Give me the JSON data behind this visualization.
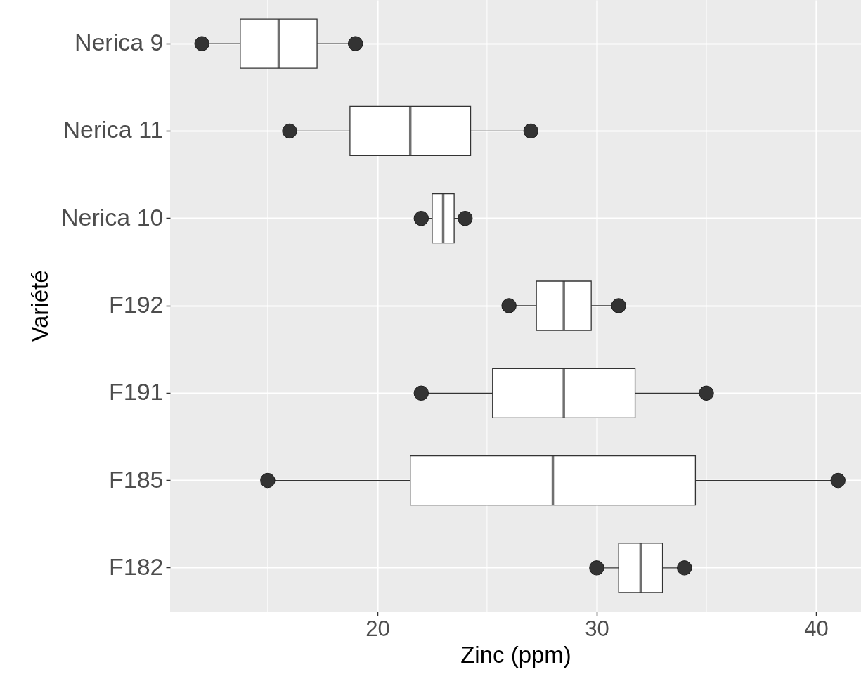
{
  "chart_data": {
    "type": "box",
    "orientation": "horizontal",
    "xlabel": "Zinc (ppm)",
    "ylabel": "Variété",
    "categories": [
      "Nerica 9",
      "Nerica 11",
      "Nerica 10",
      "F192",
      "F191",
      "F185",
      "F182"
    ],
    "xlim": [
      10.55,
      42.05
    ],
    "xticks": [
      20,
      30,
      40
    ],
    "grid": true,
    "series": [
      {
        "type": "box",
        "color": "#ffffff",
        "boxes": [
          {
            "low": 12,
            "q1": 13.75,
            "median": 15.5,
            "q3": 17.25,
            "high": 19
          },
          {
            "low": 16,
            "q1": 18.75,
            "median": 21.5,
            "q3": 24.25,
            "high": 27
          },
          {
            "low": 22,
            "q1": 22.5,
            "median": 23,
            "q3": 23.5,
            "high": 24
          },
          {
            "low": 26,
            "q1": 27.25,
            "median": 28.5,
            "q3": 29.75,
            "high": 31
          },
          {
            "low": 22,
            "q1": 25.25,
            "median": 28.5,
            "q3": 31.75,
            "high": 35
          },
          {
            "low": 15,
            "q1": 21.5,
            "median": 28,
            "q3": 34.5,
            "high": 41
          },
          {
            "low": 30,
            "q1": 31,
            "median": 32,
            "q3": 33,
            "high": 34
          }
        ]
      },
      {
        "type": "scatter",
        "color": "#333333",
        "marker": "circle",
        "x": [
          "Nerica 9",
          "Nerica 11",
          "Nerica 10",
          "F192",
          "F191",
          "F185",
          "F182",
          "Nerica 9",
          "Nerica 11",
          "Nerica 10",
          "F192",
          "F191",
          "F185",
          "F182"
        ],
        "values": [
          12,
          16,
          22,
          26,
          22,
          15,
          30,
          19,
          27,
          24,
          31,
          35,
          41,
          34
        ]
      }
    ]
  }
}
